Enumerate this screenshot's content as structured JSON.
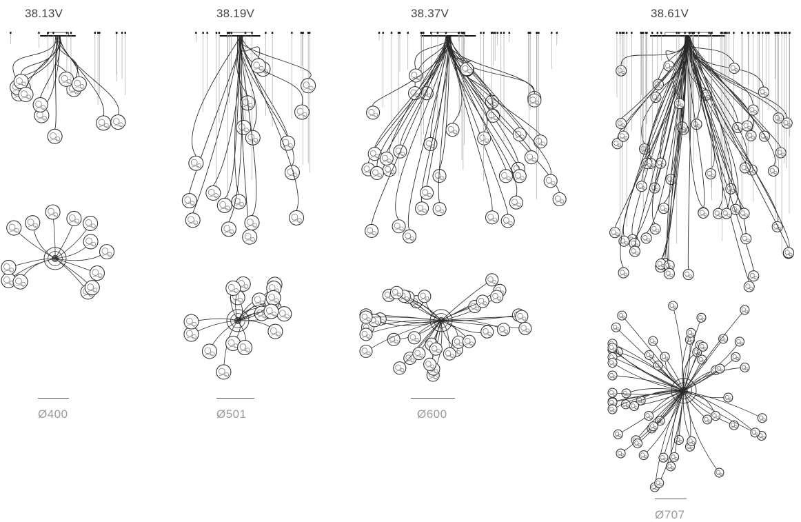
{
  "models": [
    {
      "label": "38.13V",
      "diameter": "Ø400",
      "pendants": 13
    },
    {
      "label": "38.19V",
      "diameter": "Ø501",
      "pendants": 19
    },
    {
      "label": "38.37V",
      "diameter": "Ø600",
      "pendants": 37
    },
    {
      "label": "38.61V",
      "diameter": "Ø707",
      "pendants": 61
    }
  ],
  "colors": {
    "line": "#333333",
    "text": "#444444",
    "dimension": "#9a9a9a"
  }
}
